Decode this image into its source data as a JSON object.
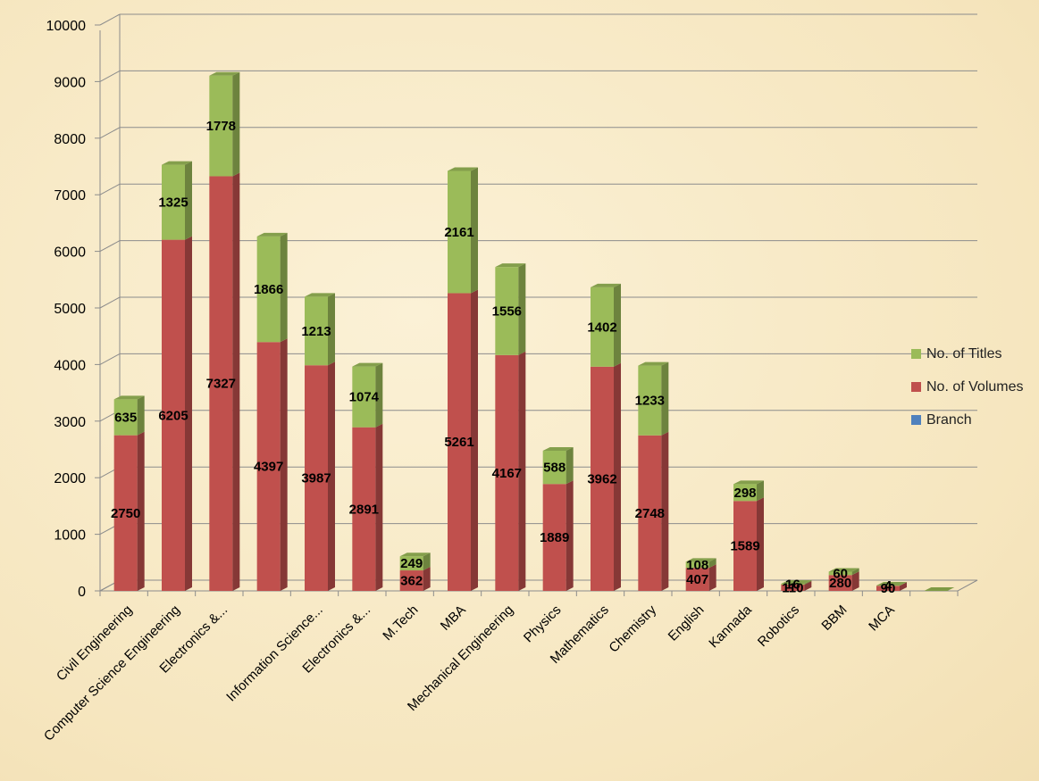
{
  "chart_data": {
    "type": "bar",
    "stacked": true,
    "three_d": true,
    "categories": [
      "Civil Engineering",
      "Computer Science Engineering",
      "Electronics &...",
      "",
      "Information Science...",
      "Electronics &...",
      "M.Tech",
      "MBA",
      "Mechanical Engineering",
      "Physics",
      "Mathematics",
      "Chemistry",
      "English",
      "Kannada",
      "Robotics",
      "BBM",
      "MCA",
      ""
    ],
    "series": [
      {
        "name": "Branch",
        "color": "#4f81bd",
        "values": [
          0,
          0,
          0,
          0,
          0,
          0,
          0,
          0,
          0,
          0,
          0,
          0,
          0,
          0,
          0,
          0,
          0,
          0
        ],
        "labels": [
          "",
          "",
          "",
          "",
          "",
          "",
          "",
          "",
          "",
          "",
          "",
          "",
          "",
          "",
          "",
          "",
          "",
          ""
        ]
      },
      {
        "name": "No. of Volumes",
        "color": "#c0504d",
        "values": [
          2750,
          6205,
          7327,
          4397,
          3987,
          2891,
          362,
          5261,
          4167,
          1889,
          3962,
          2748,
          407,
          1589,
          110,
          280,
          90,
          0
        ],
        "labels": [
          "2750",
          "6205",
          "7327",
          "4397",
          "3987",
          "2891",
          "362",
          "5261",
          "4167",
          "1889",
          "3962",
          "2748",
          "407",
          "1589",
          "110",
          "280",
          "90",
          ""
        ]
      },
      {
        "name": "No. of Titles",
        "color": "#9bbb59",
        "values": [
          635,
          1325,
          1778,
          1866,
          1213,
          1074,
          249,
          2161,
          1556,
          588,
          1402,
          1233,
          108,
          298,
          16,
          60,
          4,
          0
        ],
        "labels": [
          "635",
          "1325",
          "1778",
          "1866",
          "1213",
          "1074",
          "249",
          "2161",
          "1556",
          "588",
          "1402",
          "1233",
          "108",
          "298",
          "16",
          "60",
          "4",
          ""
        ]
      }
    ],
    "ylim": [
      0,
      10000
    ],
    "yticks": [
      "0",
      "1000",
      "2000",
      "3000",
      "4000",
      "5000",
      "6000",
      "7000",
      "8000",
      "9000",
      "10000"
    ],
    "xlabel": "",
    "ylabel": "",
    "title": "",
    "grid": true,
    "legend_position": "right"
  },
  "legend": {
    "items": [
      {
        "label": "No. of Titles",
        "color": "#9bbb59"
      },
      {
        "label": "No. of Volumes",
        "color": "#c0504d"
      },
      {
        "label": "Branch",
        "color": "#4f81bd"
      }
    ]
  }
}
